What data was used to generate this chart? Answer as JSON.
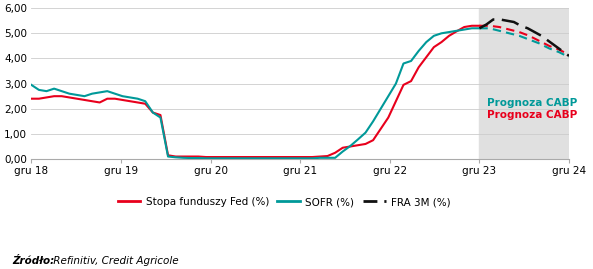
{
  "ylim": [
    0.0,
    6.0
  ],
  "yticks": [
    0.0,
    1.0,
    2.0,
    3.0,
    4.0,
    5.0,
    6.0
  ],
  "ytick_labels": [
    "0,00",
    "1,00",
    "2,00",
    "3,00",
    "4,00",
    "5,00",
    "6,00"
  ],
  "xtick_labels": [
    "gru 18",
    "gru 19",
    "gru 20",
    "gru 21",
    "gru 22",
    "gru 23",
    "gru 24"
  ],
  "background_color": "#ffffff",
  "forecast_bg_color": "#e0e0e0",
  "red_color": "#e8001c",
  "teal_color": "#009999",
  "black_color": "#111111",
  "source_bold": "Źródło:",
  "source_normal": " Refinitiv, Credit Agricole",
  "legend_entries": [
    "Stopa funduszy Fed (%)",
    "SOFR (%)",
    "FRA 3M (%)"
  ],
  "annotation_teal": "Prognoza CABP",
  "annotation_red": "Prognoza CABP",
  "fed_rate": [
    2.4,
    2.4,
    2.45,
    2.5,
    2.5,
    2.45,
    2.4,
    2.35,
    2.3,
    2.25,
    2.4,
    2.4,
    2.35,
    2.3,
    2.25,
    2.2,
    1.85,
    1.75,
    0.15,
    0.1,
    0.1,
    0.1,
    0.1,
    0.08,
    0.08,
    0.08,
    0.08,
    0.08,
    0.08,
    0.08,
    0.08,
    0.08,
    0.08,
    0.08,
    0.08,
    0.08,
    0.08,
    0.08,
    0.1,
    0.12,
    0.25,
    0.45,
    0.5,
    0.55,
    0.6,
    0.75,
    1.2,
    1.65,
    2.3,
    2.95,
    3.1,
    3.65,
    4.05,
    4.45,
    4.65,
    4.9,
    5.08,
    5.25,
    5.3,
    5.3
  ],
  "sofr": [
    2.95,
    2.75,
    2.7,
    2.8,
    2.7,
    2.6,
    2.55,
    2.5,
    2.6,
    2.65,
    2.7,
    2.6,
    2.5,
    2.45,
    2.4,
    2.3,
    1.85,
    1.65,
    0.1,
    0.07,
    0.05,
    0.04,
    0.04,
    0.03,
    0.03,
    0.03,
    0.03,
    0.03,
    0.03,
    0.03,
    0.03,
    0.03,
    0.03,
    0.03,
    0.03,
    0.03,
    0.03,
    0.03,
    0.05,
    0.05,
    0.05,
    0.3,
    0.52,
    0.78,
    1.05,
    1.5,
    2.0,
    2.5,
    3.0,
    3.8,
    3.9,
    4.3,
    4.65,
    4.9,
    5.0,
    5.05,
    5.1,
    5.15,
    5.2,
    5.2
  ],
  "fra3m_forecast": [
    5.2,
    5.35,
    5.55,
    5.55,
    5.5,
    5.45,
    5.3,
    5.2,
    5.05,
    4.9,
    4.7,
    4.5,
    4.3,
    4.1
  ],
  "fed_forecast": [
    5.3,
    5.3,
    5.25,
    5.15,
    5.05,
    4.9,
    4.7,
    4.5,
    4.35,
    4.15
  ],
  "sofr_forecast": [
    5.2,
    5.2,
    5.1,
    5.0,
    4.9,
    4.75,
    4.6,
    4.4,
    4.25,
    4.05
  ],
  "n_hist": 60,
  "n_fc_fed": 10,
  "n_fc_sofr": 10,
  "n_fc_fra": 14
}
